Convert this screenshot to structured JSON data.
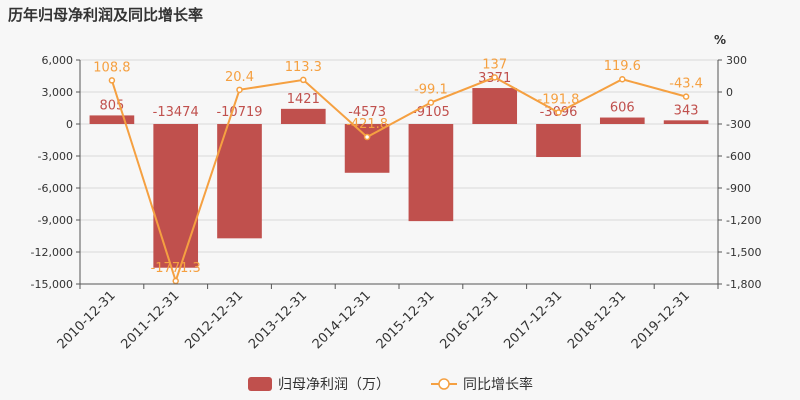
{
  "title": "历年归母净利润及同比增长率",
  "colors": {
    "bar": "#c0504d",
    "line": "#f5a041",
    "axis": "#555555",
    "grid": "#d9d9d9"
  },
  "chart_data": {
    "type": "bar",
    "categories": [
      "2010-12-31",
      "2011-12-31",
      "2012-12-31",
      "2013-12-31",
      "2014-12-31",
      "2015-12-31",
      "2016-12-31",
      "2017-12-31",
      "2018-12-31",
      "2019-12-31"
    ],
    "series": [
      {
        "name": "归母净利润（万）",
        "type": "bar",
        "axis": "left",
        "values": [
          805,
          -13474,
          -10719,
          1421,
          -4573,
          -9105,
          3371,
          -3096,
          606,
          343
        ]
      },
      {
        "name": "同比增长率",
        "type": "line",
        "axis": "right",
        "values": [
          108.8,
          -1771.3,
          20.4,
          113.3,
          -421.8,
          -99.1,
          137,
          -191.8,
          119.6,
          -43.4
        ]
      }
    ],
    "y_left": {
      "min": -15000,
      "max": 6000,
      "ticks": [
        "-15,000",
        "-12,000",
        "-9,000",
        "-6,000",
        "-3,000",
        "0",
        "3,000",
        "6,000"
      ],
      "tick_values": [
        -15000,
        -12000,
        -9000,
        -6000,
        -3000,
        0,
        3000,
        6000
      ]
    },
    "y_right": {
      "min": -1800,
      "max": 300,
      "unit": "%",
      "ticks": [
        "-1,800",
        "-1,500",
        "-1,200",
        "-900",
        "-600",
        "-300",
        "0",
        "300"
      ],
      "tick_values": [
        -1800,
        -1500,
        -1200,
        -900,
        -600,
        -300,
        0,
        300
      ]
    },
    "grid": true,
    "legend_position": "bottom"
  }
}
